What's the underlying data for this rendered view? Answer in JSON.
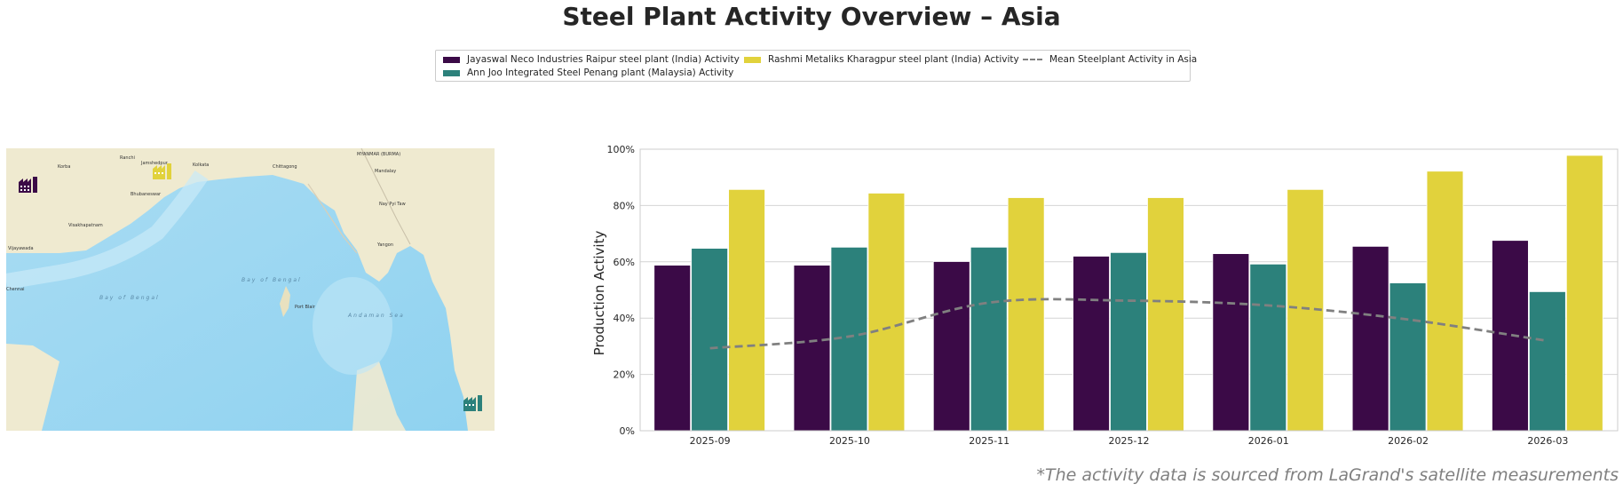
{
  "title": "Steel Plant Activity Overview – Asia",
  "footnote": "*The activity data is sourced from LaGrand's satellite measurements",
  "legend": [
    {
      "label": "Jayaswal Neco Industries Raipur steel plant (India) Activity",
      "color": "#3b0a47",
      "kind": "bar"
    },
    {
      "label": "Ann Joo Integrated Steel Penang plant (Malaysia) Activity",
      "color": "#2c817b",
      "kind": "bar"
    },
    {
      "label": "Rashmi Metaliks Kharagpur steel plant (India) Activity",
      "color": "#e1d23c",
      "kind": "bar"
    },
    {
      "label": "Mean Steelplant Activity in Asia",
      "color": "#808080",
      "kind": "dashed-line"
    }
  ],
  "map": {
    "labels": [
      "Ranchi",
      "Jamshedpur",
      "Kolkata",
      "Korba",
      "Bhubaneswar",
      "Visakhapatnam",
      "Vijayawada",
      "Chittagong",
      "MYANMAR (BURMA)",
      "Mandalay",
      "Nay Pyi Taw",
      "Yangon",
      "Bay of Bengal",
      "Bay of Bengal",
      "Andaman Sea",
      "Port Blair",
      "Chennai"
    ],
    "markers": [
      {
        "name": "Jayaswal Neco Industries Raipur",
        "color": "#3b0a47",
        "icon": "factory-icon"
      },
      {
        "name": "Rashmi Metaliks Kharagpur",
        "color": "#e1d23c",
        "icon": "factory-icon"
      },
      {
        "name": "Ann Joo Integrated Steel Penang",
        "color": "#2c817b",
        "icon": "factory-icon"
      }
    ]
  },
  "chart_data": {
    "type": "bar",
    "title": "Steel Plant Activity Overview – Asia",
    "xlabel": "",
    "ylabel": "Production Activity",
    "ylim": [
      0,
      100
    ],
    "yticks": [
      "0%",
      "20%",
      "40%",
      "60%",
      "80%",
      "100%"
    ],
    "ytick_values": [
      0,
      20,
      40,
      60,
      80,
      100
    ],
    "grid": true,
    "legend_position": "top-center",
    "categories": [
      "2025-09",
      "2025-10",
      "2025-11",
      "2025-12",
      "2026-01",
      "2026-02",
      "2026-03"
    ],
    "series": [
      {
        "name": "Jayaswal Neco Industries Raipur steel plant (India) Activity",
        "type": "bar",
        "color": "#3b0a47",
        "values": [
          58.8,
          58.8,
          60.1,
          62.0,
          62.9,
          65.5,
          67.6
        ]
      },
      {
        "name": "Ann Joo Integrated Steel Penang plant (Malaysia) Activity",
        "type": "bar",
        "color": "#2c817b",
        "values": [
          64.8,
          65.2,
          65.2,
          63.3,
          59.2,
          52.5,
          49.4
        ]
      },
      {
        "name": "Rashmi Metaliks Kharagpur steel plant (India) Activity",
        "type": "bar",
        "color": "#e1d23c",
        "values": [
          85.7,
          84.4,
          82.8,
          82.8,
          85.7,
          92.2,
          97.8
        ]
      },
      {
        "name": "Mean Steelplant Activity in Asia",
        "type": "line",
        "style": "dashed",
        "color": "#808080",
        "values": [
          29.3,
          33.5,
          45.5,
          46.2,
          44.5,
          39.5,
          31.9
        ]
      }
    ]
  }
}
